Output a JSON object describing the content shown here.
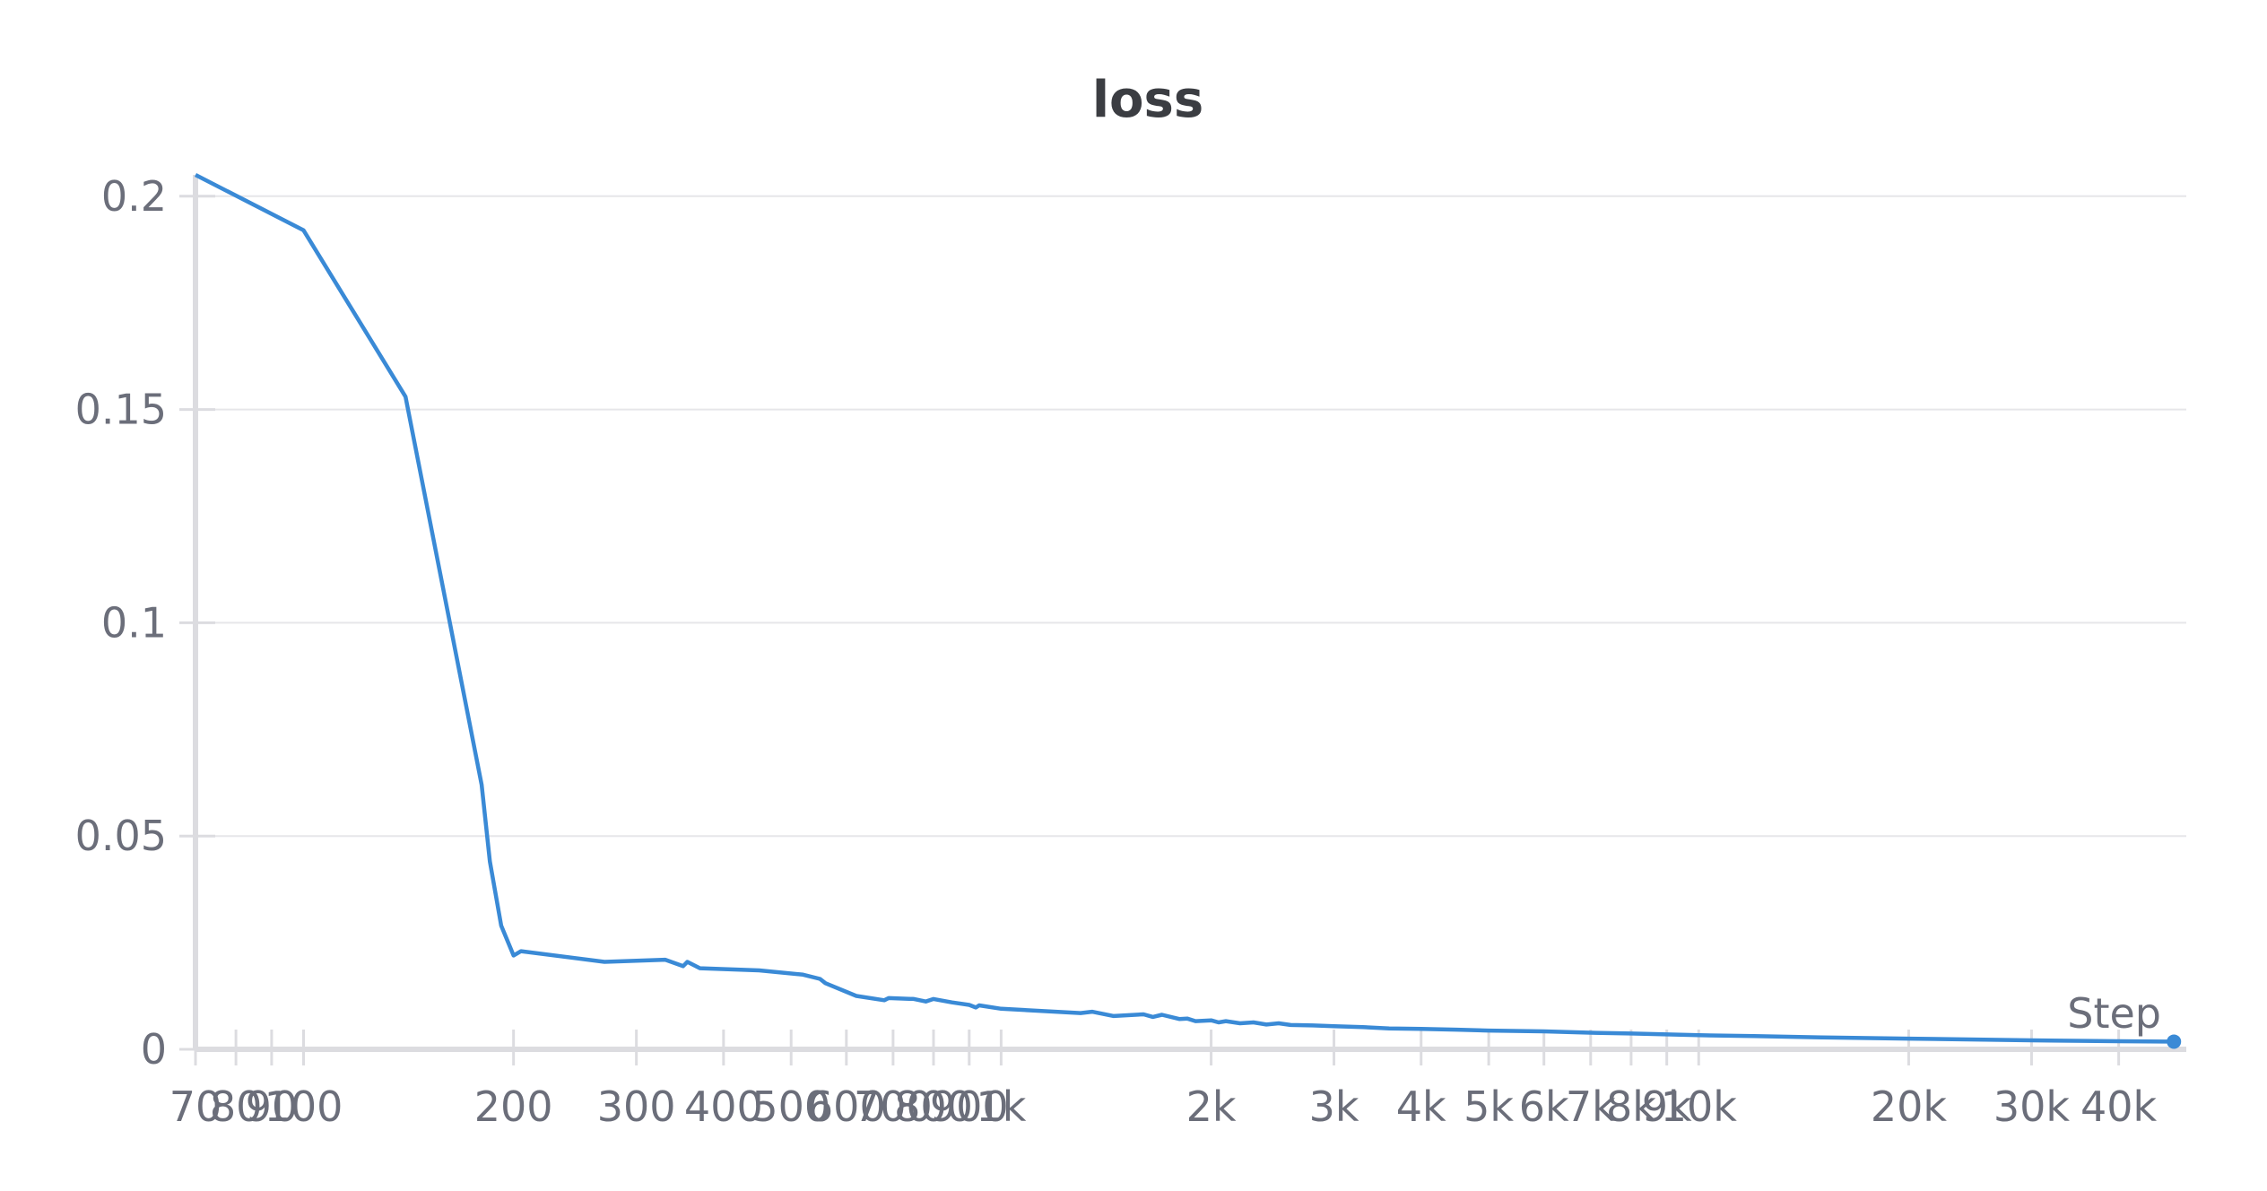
{
  "chart_data": {
    "type": "line",
    "title": "loss",
    "xlabel": "Step",
    "ylabel": "",
    "xscale": "log",
    "xlim": [
      70,
      50000
    ],
    "ylim": [
      0,
      0.205
    ],
    "grid": true,
    "y_ticks": [
      {
        "value": 0,
        "label": "0"
      },
      {
        "value": 0.05,
        "label": "0.05"
      },
      {
        "value": 0.1,
        "label": "0.1"
      },
      {
        "value": 0.15,
        "label": "0.15"
      },
      {
        "value": 0.2,
        "label": "0.2"
      }
    ],
    "x_ticks": [
      {
        "value": 70,
        "label": "70"
      },
      {
        "value": 80,
        "label": "80"
      },
      {
        "value": 90,
        "label": "90"
      },
      {
        "value": 100,
        "label": "100"
      },
      {
        "value": 200,
        "label": "200"
      },
      {
        "value": 300,
        "label": "300"
      },
      {
        "value": 400,
        "label": "400"
      },
      {
        "value": 500,
        "label": "500"
      },
      {
        "value": 600,
        "label": "600"
      },
      {
        "value": 700,
        "label": "700"
      },
      {
        "value": 800,
        "label": "800"
      },
      {
        "value": 900,
        "label": "900"
      },
      {
        "value": 1000,
        "label": "1k"
      },
      {
        "value": 2000,
        "label": "2k"
      },
      {
        "value": 3000,
        "label": "3k"
      },
      {
        "value": 4000,
        "label": "4k"
      },
      {
        "value": 5000,
        "label": "5k"
      },
      {
        "value": 6000,
        "label": "6k"
      },
      {
        "value": 7000,
        "label": "7k"
      },
      {
        "value": 8000,
        "label": "8k"
      },
      {
        "value": 9000,
        "label": "9k"
      },
      {
        "value": 10000,
        "label": "10k"
      },
      {
        "value": 20000,
        "label": "20k"
      },
      {
        "value": 30000,
        "label": "30k"
      },
      {
        "value": 40000,
        "label": "40k"
      }
    ],
    "series": [
      {
        "color": "#3a8ad6",
        "x": [
          70,
          100,
          140,
          180,
          185,
          192,
          200,
          205,
          270,
          330,
          350,
          355,
          370,
          450,
          520,
          550,
          560,
          620,
          680,
          690,
          750,
          780,
          800,
          850,
          900,
          920,
          930,
          1000,
          1300,
          1350,
          1450,
          1600,
          1650,
          1700,
          1800,
          1850,
          1900,
          2000,
          2050,
          2100,
          2200,
          2300,
          2400,
          2500,
          2600,
          2800,
          3000,
          3300,
          3600,
          4000,
          4500,
          5000,
          6000,
          7000,
          8000,
          9000,
          10000,
          12000,
          15000,
          20000,
          25000,
          30000,
          40000,
          48000
        ],
        "y": [
          0.205,
          0.192,
          0.153,
          0.062,
          0.044,
          0.029,
          0.022,
          0.023,
          0.0205,
          0.021,
          0.0195,
          0.0205,
          0.019,
          0.0185,
          0.0175,
          0.0165,
          0.0155,
          0.0125,
          0.0115,
          0.012,
          0.0118,
          0.0112,
          0.0118,
          0.011,
          0.0104,
          0.0098,
          0.0103,
          0.0095,
          0.0085,
          0.0088,
          0.0078,
          0.0082,
          0.0076,
          0.0081,
          0.0071,
          0.0072,
          0.0066,
          0.0068,
          0.0063,
          0.0066,
          0.0061,
          0.0063,
          0.0058,
          0.0061,
          0.0057,
          0.0056,
          0.0054,
          0.0052,
          0.0049,
          0.0048,
          0.0046,
          0.0044,
          0.0042,
          0.0039,
          0.0037,
          0.0035,
          0.0033,
          0.0031,
          0.0028,
          0.0025,
          0.0023,
          0.0021,
          0.0019,
          0.0018
        ]
      }
    ]
  }
}
